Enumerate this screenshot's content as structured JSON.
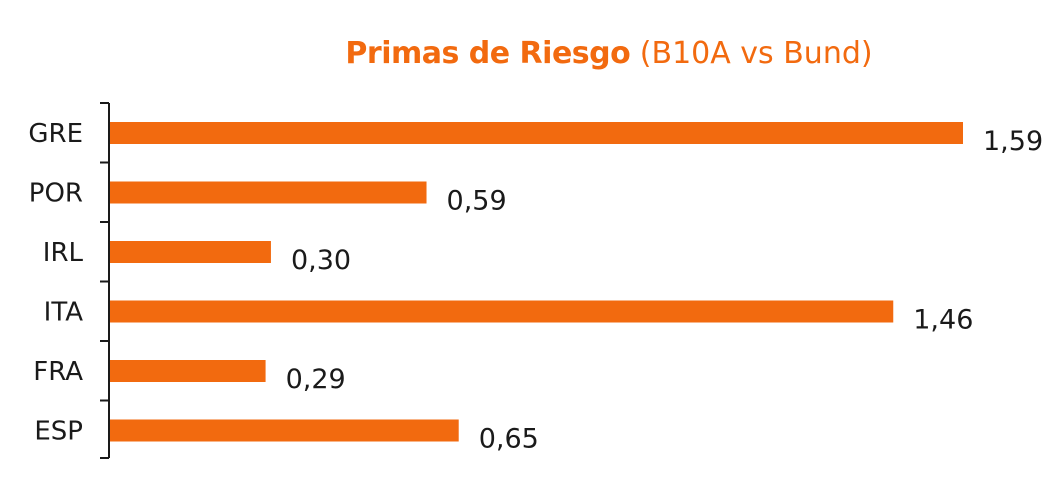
{
  "chart_data": {
    "type": "bar",
    "orientation": "horizontal",
    "title": "Primas de Riesgo",
    "subtitle": "(B10A vs Bund)",
    "categories": [
      "GRE",
      "POR",
      "IRL",
      "ITA",
      "FRA",
      "ESP"
    ],
    "values": [
      1.59,
      0.59,
      0.3,
      1.46,
      0.29,
      0.65
    ],
    "value_labels": [
      "1,59",
      "0,59",
      "0,30",
      "1,46",
      "0,29",
      "0,65"
    ],
    "xlim": [
      0,
      1.59
    ],
    "grid": false,
    "legend": "none",
    "bar_color": "#f26a0f",
    "axis_color": "#1a1a1a",
    "title_color": "#f26a0f"
  }
}
